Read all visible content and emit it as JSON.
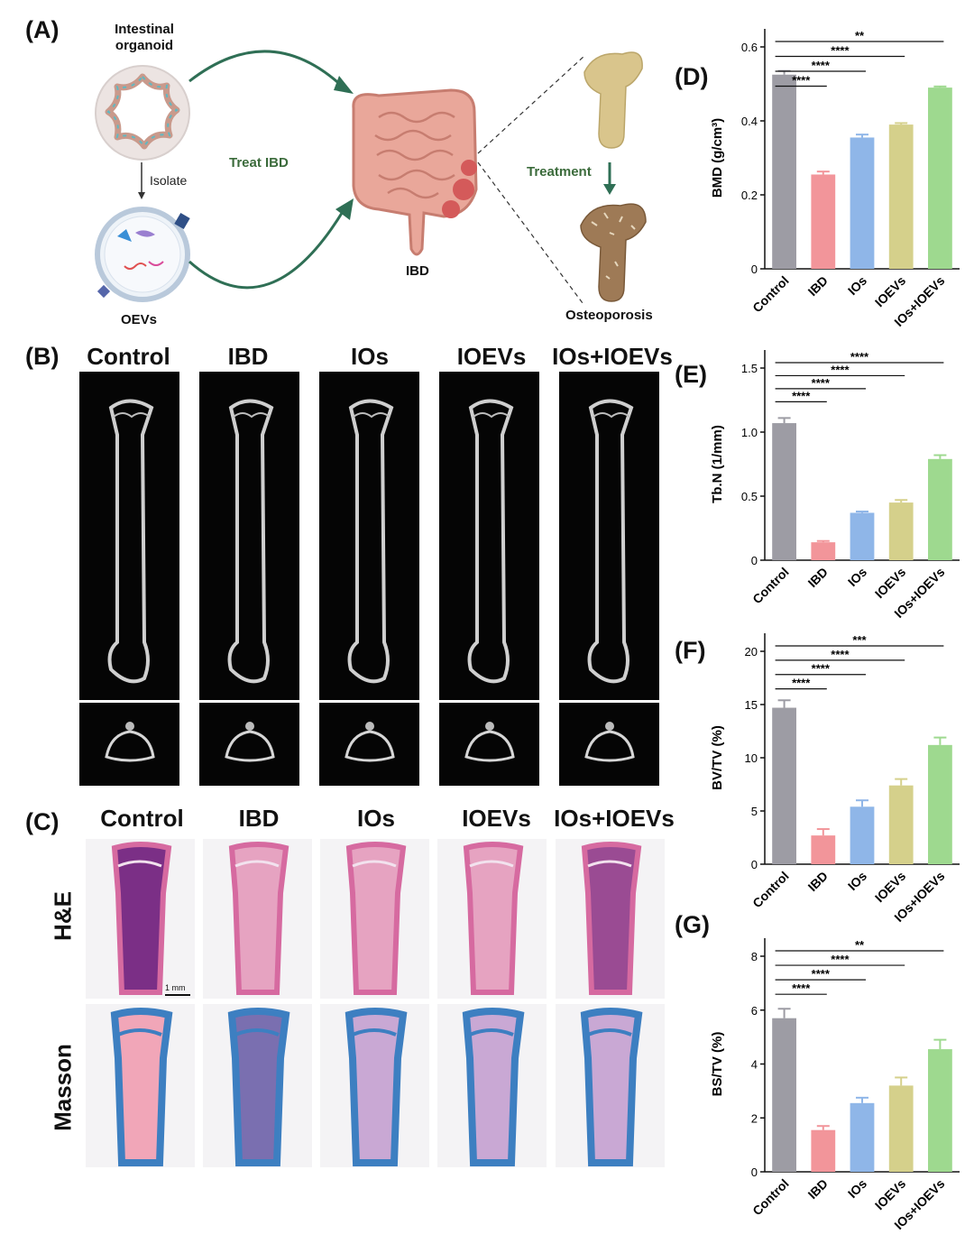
{
  "panels": {
    "A": "(A)",
    "B": "(B)",
    "C": "(C)",
    "D": "(D)",
    "E": "(E)",
    "F": "(F)",
    "G": "(G)"
  },
  "schematic": {
    "organoid": "Intestinal\norganoid",
    "isolate": "Isolate",
    "oevs": "OEVs",
    "treat_ibd": "Treat IBD",
    "ibd": "IBD",
    "treatment": "Treatment",
    "osteoporosis": "Osteoporosis"
  },
  "groups": [
    "Control",
    "IBD",
    "IOs",
    "IOEVs",
    "IOs+IOEVs"
  ],
  "colors": {
    "Control": "#9d9ca4",
    "IBD": "#f2959a",
    "IOs": "#8fb6e8",
    "IOEVs": "#d5d08b",
    "IOs+IOEVs": "#9ed98f"
  },
  "histology": {
    "rows": [
      "H&E",
      "Masson"
    ],
    "scale_bar": "1 mm"
  },
  "chart_data": [
    {
      "type": "bar",
      "panel": "D",
      "categories": [
        "Control",
        "IBD",
        "IOs",
        "IOEVs",
        "IOs+IOEVs"
      ],
      "values": [
        0.525,
        0.255,
        0.355,
        0.39,
        0.49
      ],
      "errors": [
        0.01,
        0.008,
        0.008,
        0.004,
        0.003
      ],
      "ylabel": "BMD (g/cm³)",
      "ylim": [
        0,
        0.6
      ],
      "yticks": [
        0,
        0.2,
        0.4,
        0.6
      ],
      "ytick_labels": [
        "0",
        "0.2",
        "0.4",
        "0.6"
      ],
      "significance": [
        {
          "from": "Control",
          "to": "IBD",
          "label": "****"
        },
        {
          "from": "Control",
          "to": "IOs",
          "label": "****"
        },
        {
          "from": "Control",
          "to": "IOEVs",
          "label": "****"
        },
        {
          "from": "Control",
          "to": "IOs+IOEVs",
          "label": "**"
        }
      ]
    },
    {
      "type": "bar",
      "panel": "E",
      "categories": [
        "Control",
        "IBD",
        "IOs",
        "IOEVs",
        "IOs+IOEVs"
      ],
      "values": [
        1.07,
        0.14,
        0.37,
        0.45,
        0.79
      ],
      "errors": [
        0.04,
        0.01,
        0.01,
        0.02,
        0.03
      ],
      "ylabel": "Tb.N (1/mm)",
      "ylim": [
        0,
        1.5
      ],
      "yticks": [
        0,
        0.5,
        1.0,
        1.5
      ],
      "ytick_labels": [
        "0",
        "0.5",
        "1.0",
        "1.5"
      ],
      "significance": [
        {
          "from": "Control",
          "to": "IBD",
          "label": "****"
        },
        {
          "from": "Control",
          "to": "IOs",
          "label": "****"
        },
        {
          "from": "Control",
          "to": "IOEVs",
          "label": "****"
        },
        {
          "from": "Control",
          "to": "IOs+IOEVs",
          "label": "****"
        }
      ]
    },
    {
      "type": "bar",
      "panel": "F",
      "categories": [
        "Control",
        "IBD",
        "IOs",
        "IOEVs",
        "IOs+IOEVs"
      ],
      "values": [
        14.7,
        2.7,
        5.4,
        7.4,
        11.2
      ],
      "errors": [
        0.7,
        0.6,
        0.6,
        0.6,
        0.7
      ],
      "ylabel": "BV/TV (%)",
      "ylim": [
        0,
        20
      ],
      "yticks": [
        0,
        5,
        10,
        15,
        20
      ],
      "ytick_labels": [
        "0",
        "5",
        "10",
        "15",
        "20"
      ],
      "significance": [
        {
          "from": "Control",
          "to": "IBD",
          "label": "****"
        },
        {
          "from": "Control",
          "to": "IOs",
          "label": "****"
        },
        {
          "from": "Control",
          "to": "IOEVs",
          "label": "****"
        },
        {
          "from": "Control",
          "to": "IOs+IOEVs",
          "label": "***"
        }
      ]
    },
    {
      "type": "bar",
      "panel": "G",
      "categories": [
        "Control",
        "IBD",
        "IOs",
        "IOEVs",
        "IOs+IOEVs"
      ],
      "values": [
        5.7,
        1.55,
        2.55,
        3.2,
        4.55
      ],
      "errors": [
        0.35,
        0.15,
        0.2,
        0.3,
        0.35
      ],
      "ylabel": "BS/TV (%)",
      "ylim": [
        0,
        8
      ],
      "yticks": [
        0,
        2,
        4,
        6,
        8
      ],
      "ytick_labels": [
        "0",
        "2",
        "4",
        "6",
        "8"
      ],
      "significance": [
        {
          "from": "Control",
          "to": "IBD",
          "label": "****"
        },
        {
          "from": "Control",
          "to": "IOs",
          "label": "****"
        },
        {
          "from": "Control",
          "to": "IOEVs",
          "label": "****"
        },
        {
          "from": "Control",
          "to": "IOs+IOEVs",
          "label": "**"
        }
      ]
    }
  ]
}
